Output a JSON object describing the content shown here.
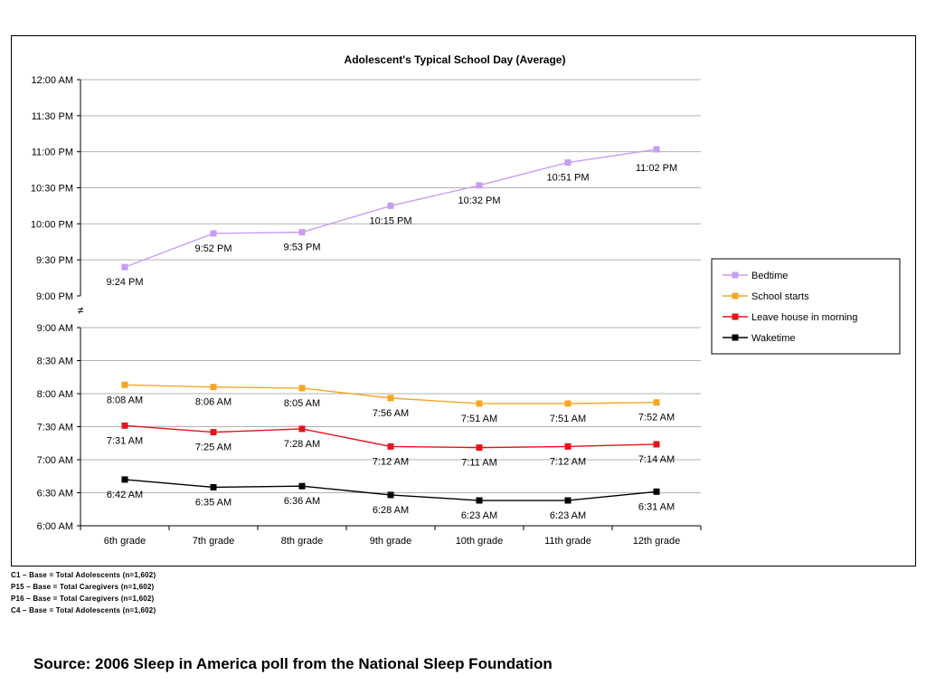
{
  "chart_data": {
    "type": "line",
    "title": "Adolescent's Typical School Day (Average)",
    "categories": [
      "6th grade",
      "7th grade",
      "8th grade",
      "9th grade",
      "10th grade",
      "11th grade",
      "12th grade"
    ],
    "axis_break_symbol": "≠",
    "grid": true,
    "legend_position": "right",
    "upper_panel": {
      "ylim": [
        "9:00 PM",
        "12:00 AM"
      ],
      "yticks": [
        "12:00 AM",
        "11:30 PM",
        "11:00 PM",
        "10:30 PM",
        "10:00 PM",
        "9:30 PM",
        "9:00 PM"
      ],
      "series": [
        {
          "name": "Bedtime",
          "color": "#c99cf2",
          "values": [
            "9:24 PM",
            "9:52 PM",
            "9:53 PM",
            "10:15 PM",
            "10:32 PM",
            "10:51 PM",
            "11:02 PM"
          ],
          "labels": [
            "9:24 PM",
            "9:52 PM",
            "9:53 PM",
            "10:15 PM",
            "10:32 PM",
            "10:51 PM",
            "11:02 PM"
          ]
        }
      ]
    },
    "lower_panel": {
      "ylim": [
        "6:00 AM",
        "9:00 AM"
      ],
      "yticks": [
        "9:00 AM",
        "8:30 AM",
        "8:00 AM",
        "7:30 AM",
        "7:00 AM",
        "6:30 AM",
        "6:00 AM"
      ],
      "series": [
        {
          "name": "School starts",
          "color": "#f5a623",
          "values": [
            "8:08 AM",
            "8:06 AM",
            "8:05 AM",
            "7:56 AM",
            "7:51 AM",
            "7:51 AM",
            "7:52 AM"
          ],
          "labels": [
            "8:08 AM",
            "8:06 AM",
            "8:05 AM",
            "7:56 AM",
            "7:51 AM",
            "7:51 AM",
            "7:52 AM"
          ]
        },
        {
          "name": "Leave house in morning",
          "color": "#e8121a",
          "values": [
            "7:31 AM",
            "7:25 AM",
            "7:28 AM",
            "7:12 AM",
            "7:11 AM",
            "7:12 AM",
            "7:14 AM"
          ],
          "labels": [
            "7:31 AM",
            "7:25 AM",
            "7:28 AM",
            "7:12 AM",
            "7:11 AM",
            "7:12 AM",
            "7:14 AM"
          ]
        },
        {
          "name": "Waketime",
          "color": "#000000",
          "values": [
            "6:42 AM",
            "6:35 AM",
            "6:36 AM",
            "6:28 AM",
            "6:23 AM",
            "6:23 AM",
            "6:31 AM"
          ],
          "labels": [
            "6:42 AM",
            "6:35 AM",
            "6:36 AM",
            "6:28 AM",
            "6:23 AM",
            "6:23 AM",
            "6:31 AM"
          ]
        }
      ]
    },
    "legend": [
      "Bedtime",
      "School starts",
      "Leave house in morning",
      "Waketime"
    ]
  },
  "base_notes": [
    "C1 – Base = Total Adolescents (n=1,602)",
    "P15 – Base = Total Caregivers (n=1,602)",
    "P16 – Base = Total Caregivers (n=1,602)",
    "C4 – Base = Total Adolescents (n=1,602)"
  ],
  "source": "Source: 2006 Sleep in America poll from the National Sleep Foundation"
}
